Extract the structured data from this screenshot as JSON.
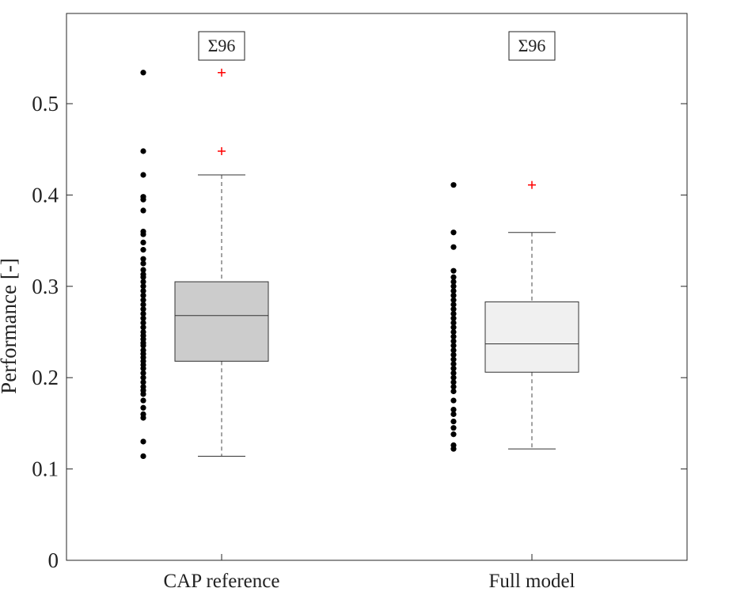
{
  "chart_data": {
    "type": "box",
    "title": "",
    "xlabel": "",
    "ylabel": "Performance [-]",
    "ylim": [
      0,
      0.6
    ],
    "yticks": [
      0,
      0.1,
      0.2,
      0.3,
      0.4,
      0.5
    ],
    "ytick_labels": [
      "0",
      "0.1",
      "0.2",
      "0.3",
      "0.4",
      "0.5"
    ],
    "grid": false,
    "categories": [
      "CAP reference",
      "Full model"
    ],
    "series": [
      {
        "name": "CAP reference",
        "count_label": "Σ96",
        "box_color": "#cccccc",
        "whisker_low": 0.114,
        "q1": 0.218,
        "median": 0.268,
        "q3": 0.305,
        "whisker_high": 0.422,
        "outliers": [
          0.534,
          0.448
        ],
        "points": [
          0.534,
          0.448,
          0.422,
          0.398,
          0.395,
          0.383,
          0.36,
          0.357,
          0.348,
          0.34,
          0.33,
          0.325,
          0.318,
          0.313,
          0.31,
          0.305,
          0.3,
          0.295,
          0.29,
          0.285,
          0.28,
          0.275,
          0.27,
          0.265,
          0.26,
          0.255,
          0.25,
          0.246,
          0.242,
          0.238,
          0.235,
          0.23,
          0.226,
          0.222,
          0.218,
          0.214,
          0.21,
          0.205,
          0.2,
          0.195,
          0.19,
          0.186,
          0.182,
          0.175,
          0.167,
          0.16,
          0.156,
          0.13,
          0.114
        ]
      },
      {
        "name": "Full model",
        "count_label": "Σ96",
        "box_color": "#f0f0f0",
        "whisker_low": 0.122,
        "q1": 0.206,
        "median": 0.237,
        "q3": 0.283,
        "whisker_high": 0.359,
        "outliers": [
          0.411
        ],
        "points": [
          0.411,
          0.359,
          0.343,
          0.317,
          0.31,
          0.305,
          0.3,
          0.295,
          0.29,
          0.285,
          0.28,
          0.275,
          0.27,
          0.265,
          0.26,
          0.255,
          0.25,
          0.245,
          0.24,
          0.235,
          0.23,
          0.225,
          0.22,
          0.215,
          0.21,
          0.205,
          0.2,
          0.195,
          0.19,
          0.185,
          0.175,
          0.165,
          0.16,
          0.152,
          0.145,
          0.138,
          0.126,
          0.122
        ]
      }
    ],
    "outlier_color": "#ff0000",
    "point_color": "#000000"
  }
}
